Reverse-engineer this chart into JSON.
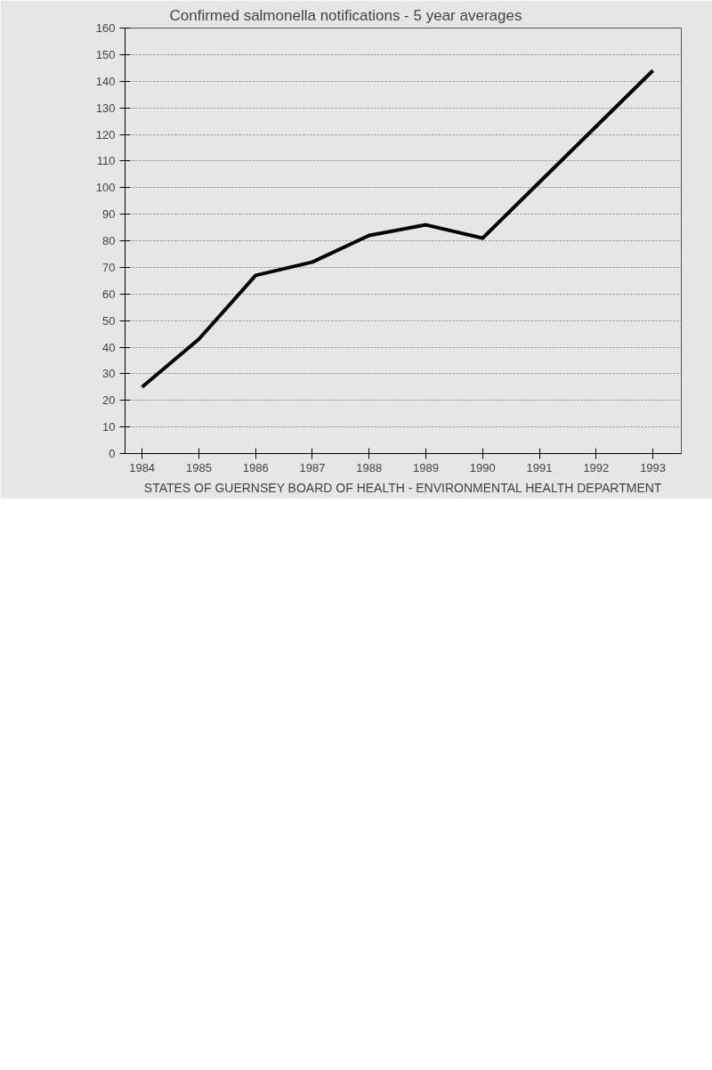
{
  "chart_data": {
    "type": "line",
    "title": "Confirmed salmonella notifications - 5 year averages",
    "x": [
      1984,
      1985,
      1986,
      1987,
      1988,
      1989,
      1990,
      1991,
      1992,
      1993
    ],
    "series": [
      {
        "color": "#000000",
        "values": [
          25,
          43,
          67,
          72,
          82,
          86,
          81,
          102,
          123,
          144
        ]
      }
    ],
    "xlim": [
      1983.7,
      1993.5
    ],
    "xticks": [
      1984,
      1985,
      1986,
      1987,
      1988,
      1989,
      1990,
      1991,
      1992,
      1993
    ],
    "ylim": [
      0,
      160
    ],
    "yticks": [
      0,
      10,
      20,
      30,
      40,
      50,
      60,
      70,
      80,
      90,
      100,
      110,
      120,
      130,
      140,
      150,
      160
    ],
    "grid": "y",
    "annotations": [
      "STATES OF GUERNSEY BOARD OF HEALTH - ENVIRONMENTAL HEALTH DEPARTMENT"
    ]
  }
}
